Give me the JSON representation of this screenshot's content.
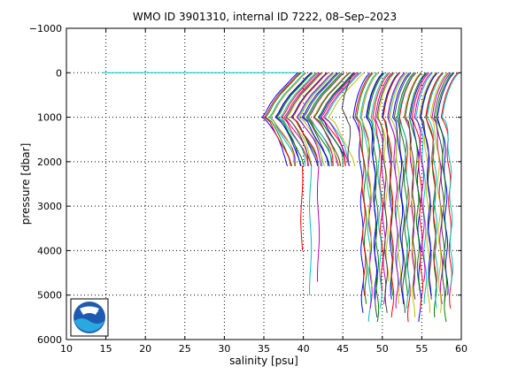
{
  "chart_data": {
    "type": "line",
    "title": "WMO ID 3901310, internal ID 7222, 08–Sep–2023",
    "xlabel": "salinity [psu]",
    "ylabel": "pressure [dbar]",
    "xlim": [
      10,
      60
    ],
    "ylim": [
      -1000,
      6000
    ],
    "y_reversed": true,
    "grid": true,
    "x_ticks": [
      10,
      15,
      20,
      25,
      30,
      35,
      40,
      45,
      50,
      55,
      60
    ],
    "x_tick_labels": [
      "10",
      "15",
      "20",
      "25",
      "30",
      "35",
      "40",
      "45",
      "50",
      "55",
      "60"
    ],
    "y_ticks": [
      -1000,
      0,
      1000,
      2000,
      3000,
      4000,
      5000,
      6000
    ],
    "y_tick_labels": [
      "−1000",
      "0",
      "1000",
      "2000",
      "3000",
      "4000",
      "5000",
      "6000"
    ],
    "series_colors": [
      "#0000ff",
      "#008000",
      "#ff0000",
      "#00bfbf",
      "#bf00bf",
      "#bfbf00",
      "#404040"
    ],
    "surface_line": {
      "x": [
        14.5,
        40
      ],
      "y": [
        0,
        0
      ],
      "color": "#00bfbf"
    },
    "groups": [
      {
        "comment_id": "left cluster",
        "count": 34,
        "x_start": 34.8,
        "x_step": 0.25,
        "profile": {
          "y": [
            0,
            80,
            200,
            350,
            500,
            700,
            900,
            1000,
            1100,
            1300,
            1500,
            1700,
            1900,
            2100
          ],
          "dx": [
            4.5,
            4.0,
            3.4,
            2.6,
            1.8,
            1.0,
            0.4,
            0.0,
            0.6,
            1.3,
            2.0,
            2.6,
            3.0,
            3.2
          ]
        },
        "deep_tails": [
          {
            "x": 39.8,
            "y_max": 4000
          },
          {
            "x": 40.9,
            "y_max": 5000
          },
          {
            "x": 41.9,
            "y_max": 4700
          }
        ]
      },
      {
        "comment_id": "notch",
        "count": 1,
        "x_start": 45.8,
        "x_step": 0,
        "profile": {
          "y": [
            0,
            200,
            500,
            800,
            1000,
            1200,
            1600,
            2000
          ],
          "dx": [
            0.4,
            0.0,
            -0.6,
            -0.9,
            -0.4,
            0.0,
            0.0,
            0.0
          ]
        },
        "deep_tails": []
      },
      {
        "comment_id": "right cluster",
        "count": 46,
        "x_start": 46.6,
        "x_step": 0.25,
        "profile": {
          "y": [
            0,
            80,
            200,
            350,
            500,
            700,
            900,
            1000,
            1100,
            1300,
            1500,
            1800,
            2200,
            2600,
            3000,
            3500,
            4000,
            4500,
            5000
          ],
          "dx": [
            1.8,
            1.4,
            1.0,
            0.6,
            0.3,
            0.0,
            -0.2,
            -0.3,
            0.0,
            0.3,
            0.5,
            0.6,
            0.7,
            0.75,
            0.8,
            0.8,
            0.85,
            0.9,
            0.9
          ]
        },
        "max_depths": [
          5400,
          5200,
          5000,
          5600,
          5300,
          4800,
          5500,
          5100,
          5650,
          4900,
          5350,
          5250,
          4700,
          5450,
          5150,
          5000,
          5550,
          4850,
          5300,
          5200
        ]
      }
    ]
  },
  "logo": {
    "text": "NOAA"
  }
}
